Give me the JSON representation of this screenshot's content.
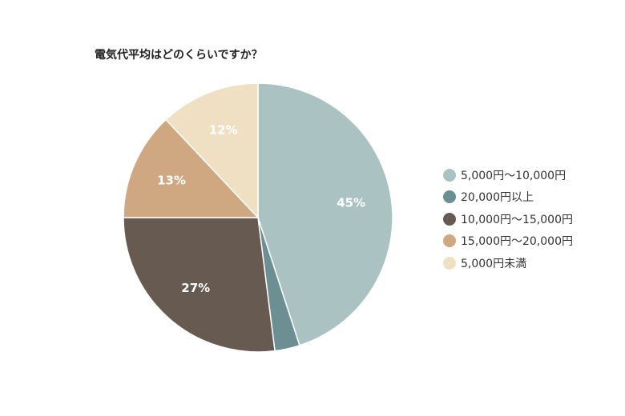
{
  "chart_data": {
    "type": "pie",
    "title": "電気代平均はどのくらいですか？",
    "categories": [
      "5,000円～10,000円",
      "20,000円以上",
      "10,000円～15,000円",
      "15,000円～20,000円",
      "5,000円未満"
    ],
    "values": [
      45,
      3,
      27,
      13,
      12
    ],
    "data_labels": [
      "45%",
      "",
      "27%",
      "13%",
      "12%"
    ],
    "colors": [
      "#abc2c2",
      "#6b8f93",
      "#675a50",
      "#cfa882",
      "#efe0c4"
    ],
    "legend_position": "right"
  }
}
